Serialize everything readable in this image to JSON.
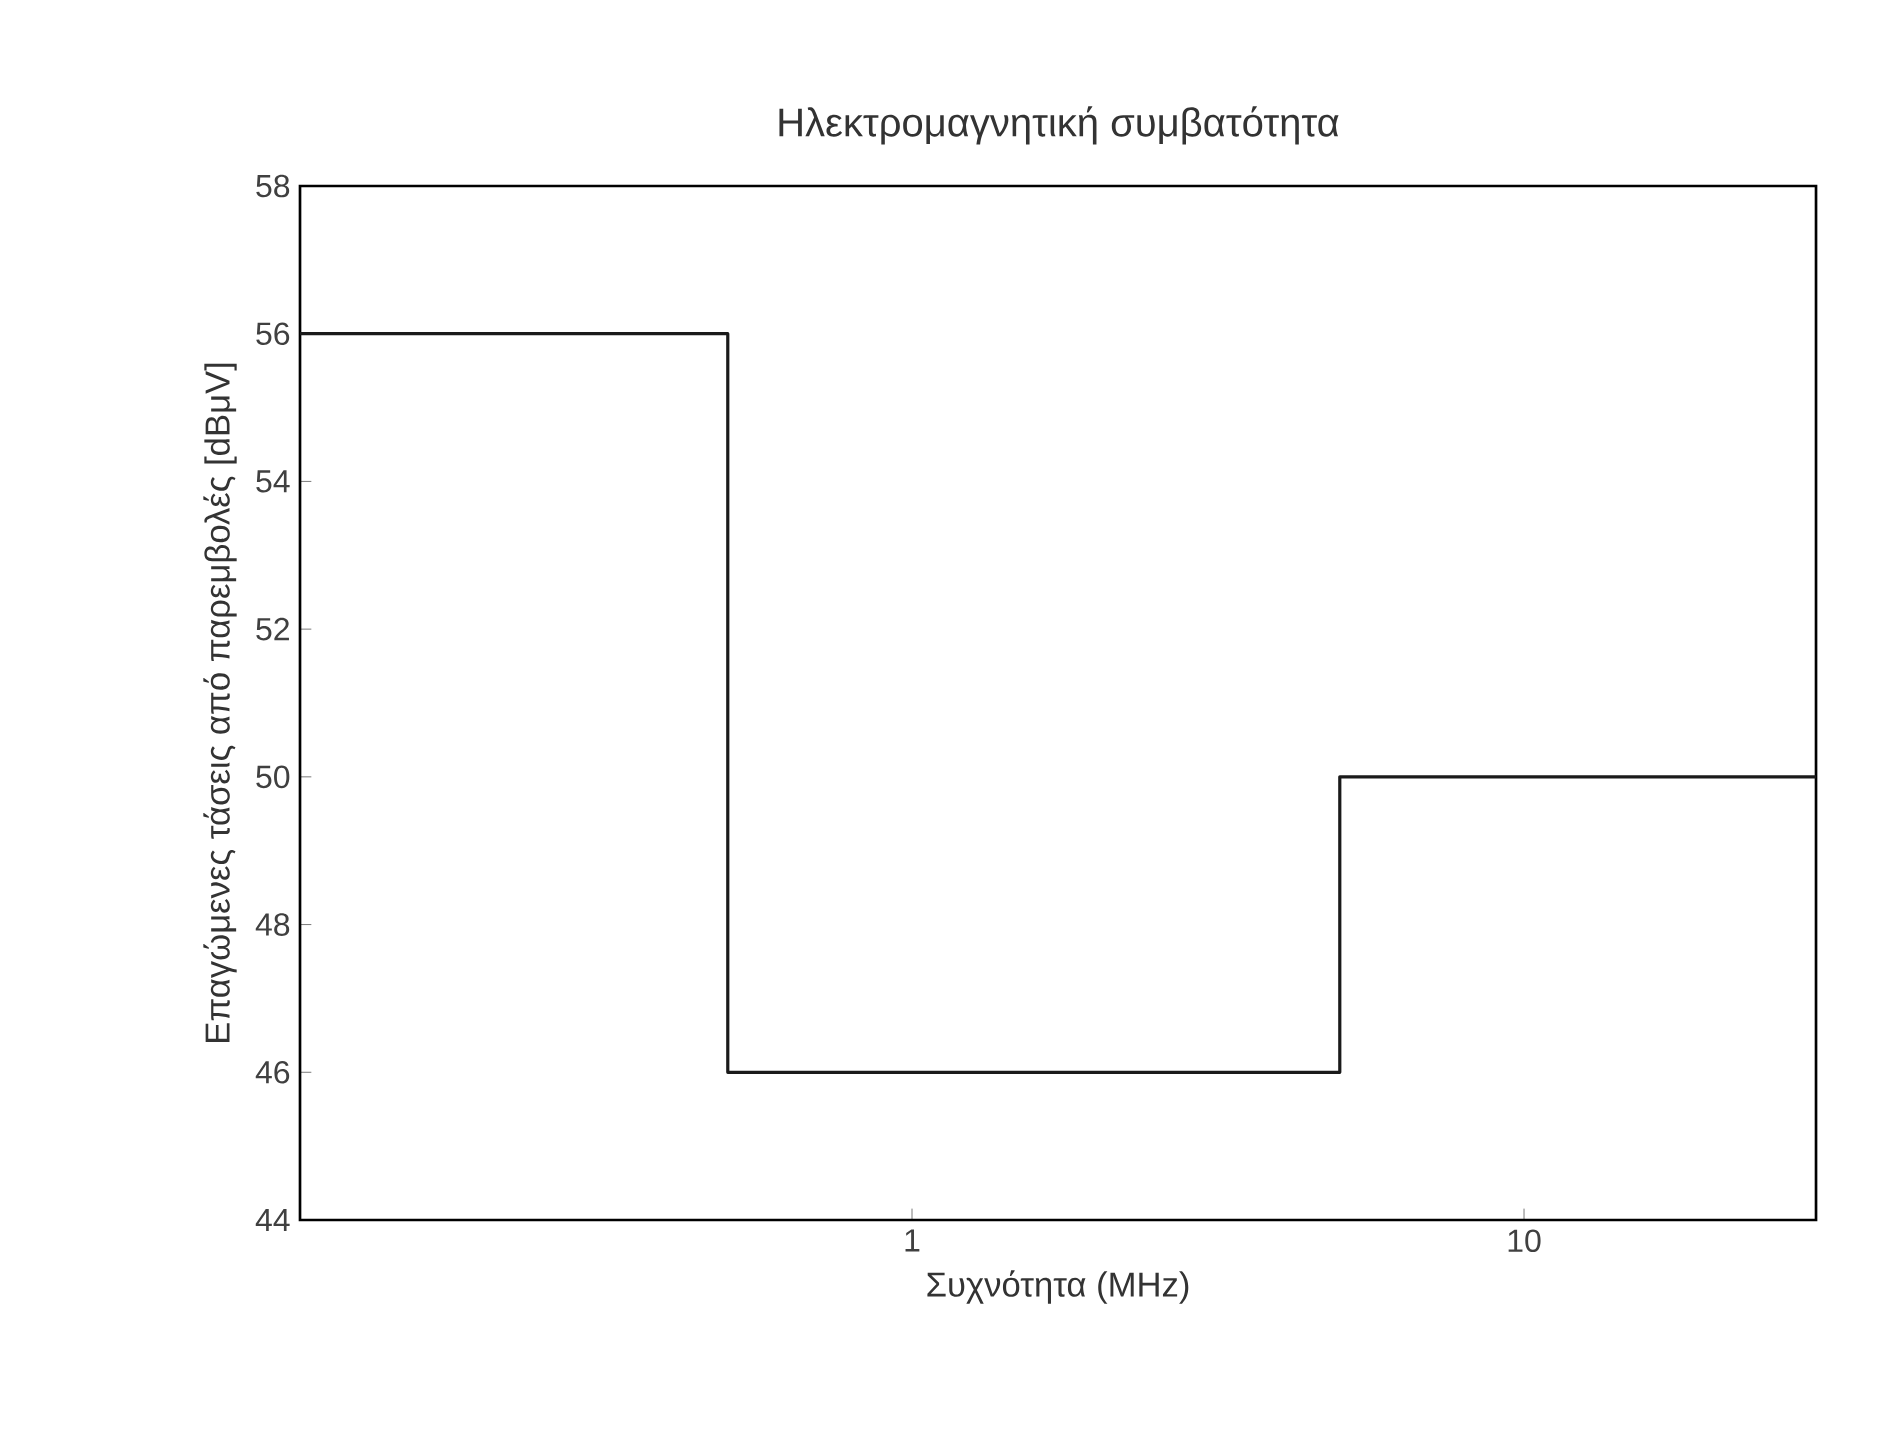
{
  "chart_data": {
    "type": "step",
    "title": "Ηλεκτρομαγνητική συμβατότητα",
    "xlabel": "Συχνότητα (MHz)",
    "ylabel": "Επαγώμενες τάσεις από παρεμβολές [dBμV]",
    "x": [
      0.1,
      0.5,
      5,
      30
    ],
    "values": [
      56,
      46,
      50,
      50
    ],
    "color": "#1a1a1a",
    "log": "x",
    "xlim": [
      0.1,
      30
    ],
    "ylim": [
      44,
      58
    ],
    "xticks": [
      1,
      10
    ],
    "yticks": [
      44,
      46,
      48,
      50,
      52,
      54,
      56,
      58
    ],
    "grid": false,
    "marker": "none",
    "line_style": "solid"
  }
}
